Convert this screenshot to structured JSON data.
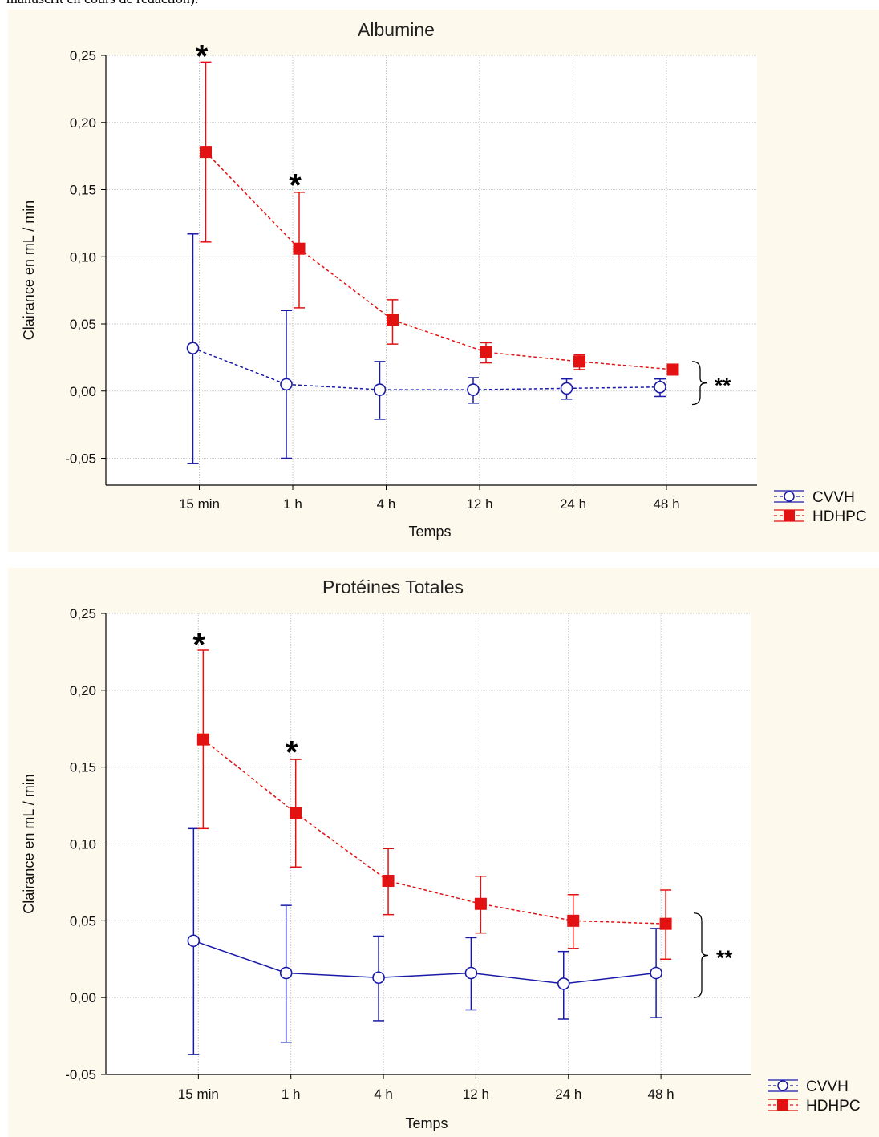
{
  "header_text": "manuscrit en cours de rédaction).",
  "colors": {
    "cvvh": "#1a1aa8",
    "hdhpc": "#e31212",
    "panel_bg": "#fdf9ec",
    "grid": "#c8c8c8"
  },
  "chart_data": [
    {
      "type": "line",
      "title": "Albumine",
      "xlabel": "Temps",
      "ylabel": "Clairance en mL / min",
      "ylim": [
        -0.07,
        0.25
      ],
      "yticks": [
        -0.05,
        0.0,
        0.05,
        0.1,
        0.15,
        0.2,
        0.25
      ],
      "ytick_labels": [
        "-0,05",
        "0,00",
        "0,05",
        "0,10",
        "0,15",
        "0,20",
        "0,25"
      ],
      "categories": [
        "15 min",
        "1 h",
        "4 h",
        "12 h",
        "24 h",
        "48 h"
      ],
      "grid": true,
      "legend_position": "bottom-right",
      "series": [
        {
          "name": "CVVH",
          "color": "#1a1aa8",
          "marker": "circle",
          "line": "dashed",
          "values": [
            0.032,
            0.005,
            0.001,
            0.001,
            0.002,
            0.003
          ],
          "err_low": [
            -0.054,
            -0.05,
            -0.021,
            -0.009,
            -0.006,
            -0.004
          ],
          "err_high": [
            0.117,
            0.06,
            0.022,
            0.01,
            0.009,
            0.009
          ]
        },
        {
          "name": "HDHPC",
          "color": "#e31212",
          "marker": "square",
          "line": "dashed",
          "values": [
            0.178,
            0.106,
            0.053,
            0.029,
            0.022,
            0.016
          ],
          "err_low": [
            0.111,
            0.062,
            0.035,
            0.021,
            0.016,
            0.012
          ],
          "err_high": [
            0.245,
            0.148,
            0.068,
            0.036,
            0.027,
            0.02
          ]
        }
      ],
      "annotations": [
        {
          "text": "*",
          "category": "15 min",
          "y": 0.252
        },
        {
          "text": "*",
          "category": "1 h",
          "y": 0.156
        },
        {
          "text": "**",
          "category": "48 h",
          "y": 0.002
        }
      ]
    },
    {
      "type": "line",
      "title": "Protéines Totales",
      "xlabel": "Temps",
      "ylabel": "Clairance en mL / min",
      "ylim": [
        -0.05,
        0.25
      ],
      "yticks": [
        -0.05,
        0.0,
        0.05,
        0.1,
        0.15,
        0.2,
        0.25
      ],
      "ytick_labels": [
        "-0,05",
        "0,00",
        "0,05",
        "0,10",
        "0,15",
        "0,20",
        "0,25"
      ],
      "categories": [
        "15 min",
        "1 h",
        "4 h",
        "12 h",
        "24 h",
        "48 h"
      ],
      "grid": true,
      "legend_position": "bottom-right",
      "series": [
        {
          "name": "CVVH",
          "color": "#1a1aa8",
          "marker": "circle",
          "line": "solid",
          "values": [
            0.037,
            0.016,
            0.013,
            0.016,
            0.009,
            0.016
          ],
          "err_low": [
            -0.037,
            -0.029,
            -0.015,
            -0.008,
            -0.014,
            -0.013
          ],
          "err_high": [
            0.11,
            0.06,
            0.04,
            0.039,
            0.03,
            0.045
          ]
        },
        {
          "name": "HDHPC",
          "color": "#e31212",
          "marker": "square",
          "line": "dashed",
          "values": [
            0.168,
            0.12,
            0.076,
            0.061,
            0.05,
            0.048
          ],
          "err_low": [
            0.11,
            0.085,
            0.054,
            0.042,
            0.032,
            0.025
          ],
          "err_high": [
            0.226,
            0.155,
            0.097,
            0.079,
            0.067,
            0.07
          ]
        }
      ],
      "annotations": [
        {
          "text": "*",
          "category": "15 min",
          "y": 0.232
        },
        {
          "text": "*",
          "category": "1 h",
          "y": 0.162
        },
        {
          "text": "**",
          "category": "48 h",
          "y": 0.027
        }
      ]
    }
  ]
}
